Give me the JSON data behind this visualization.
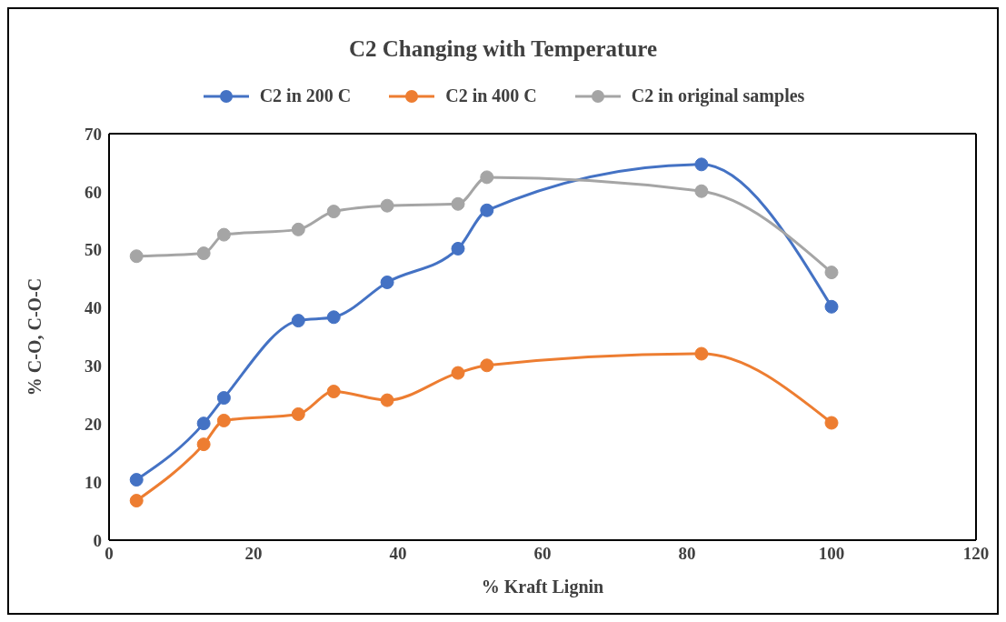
{
  "chart_data": {
    "type": "line",
    "title": "C2 Changing with Temperature",
    "xlabel": "% Kraft Lignin",
    "ylabel": "% C-O, C-O-C",
    "x": [
      3.8,
      13.1,
      15.9,
      26.2,
      31.1,
      38.5,
      48.3,
      52.3,
      82.0,
      100
    ],
    "series": [
      {
        "name": "C2 in 200 C",
        "color": "#4472c4",
        "values": [
          10.4,
          20.1,
          24.5,
          37.8,
          38.4,
          44.4,
          50.2,
          56.8,
          64.7,
          40.2
        ]
      },
      {
        "name": "C2 in 400 C",
        "color": "#ed7d31",
        "values": [
          6.8,
          16.5,
          20.6,
          21.7,
          25.6,
          24.1,
          28.8,
          30.1,
          32.1,
          20.2
        ]
      },
      {
        "name": "C2 in original samples",
        "color": "#a5a5a5",
        "values": [
          48.9,
          49.4,
          52.6,
          53.5,
          56.6,
          57.6,
          57.9,
          62.5,
          60.1,
          46.1
        ]
      }
    ],
    "xlim": [
      0,
      120
    ],
    "xticks": [
      0,
      20,
      40,
      60,
      80,
      100,
      120
    ],
    "ylim": [
      0,
      70
    ],
    "yticks": [
      0,
      10,
      20,
      30,
      40,
      50,
      60,
      70
    ],
    "grid": false,
    "legend": "top",
    "marker": "circle"
  }
}
